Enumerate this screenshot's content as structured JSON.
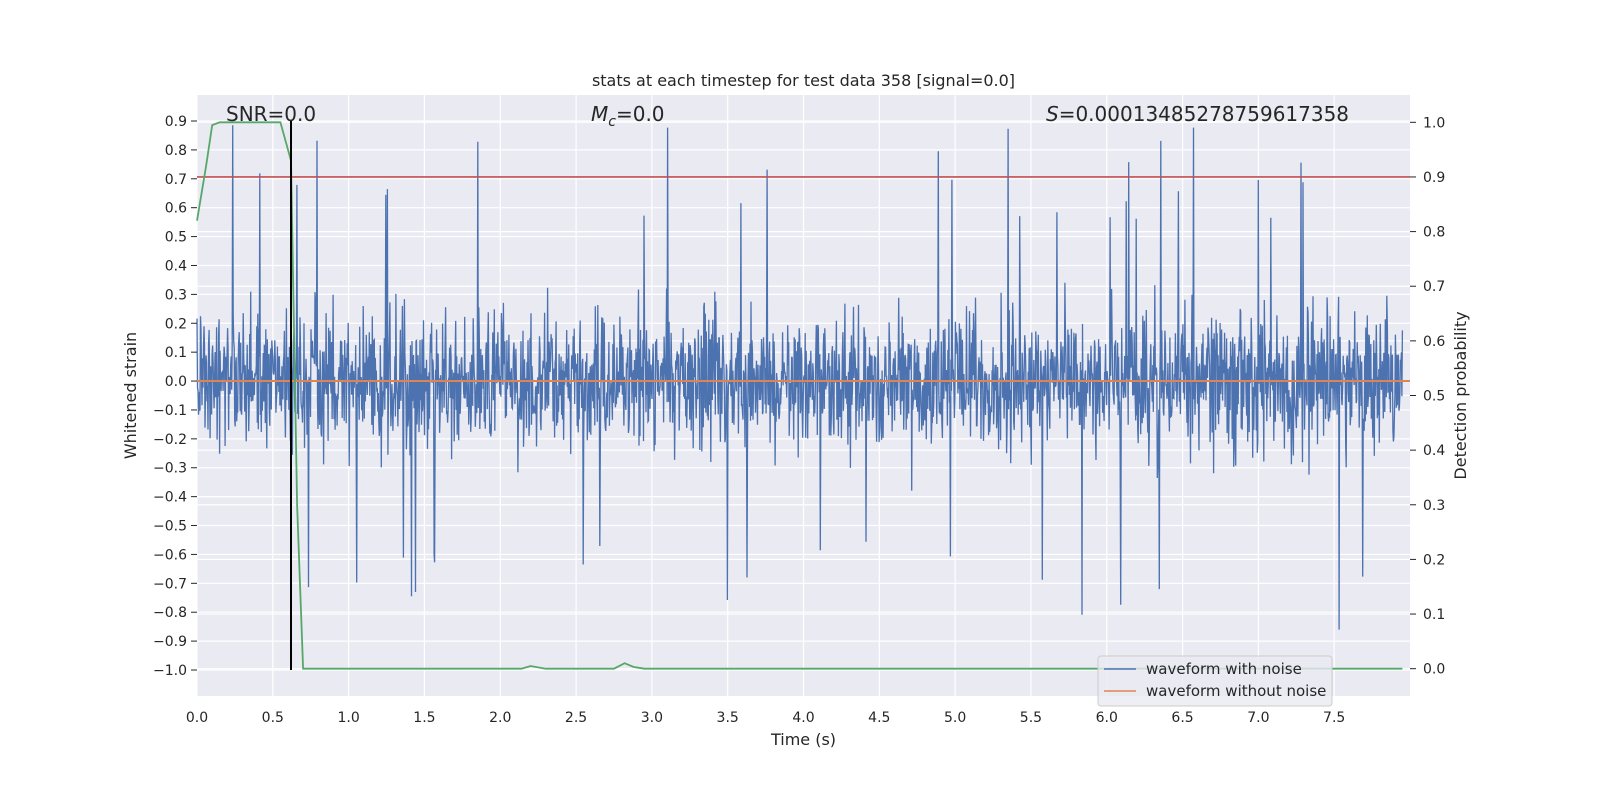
{
  "chart_data": {
    "type": "line",
    "title": "stats at each timestep for test data 358 [signal=0.0]",
    "xlabel": "Time (s)",
    "ylabel": "Whitened strain",
    "y2label": "Detection probability",
    "xlim": [
      0.0,
      8.0
    ],
    "ylim": [
      -1.09,
      0.99
    ],
    "y2lim": [
      -0.05,
      1.05
    ],
    "xticks": [
      0.0,
      0.5,
      1.0,
      1.5,
      2.0,
      2.5,
      3.0,
      3.5,
      4.0,
      4.5,
      5.0,
      5.5,
      6.0,
      6.5,
      7.0,
      7.5
    ],
    "xtick_labels": [
      "0.0",
      "0.5",
      "1.0",
      "1.5",
      "2.0",
      "2.5",
      "3.0",
      "3.5",
      "4.0",
      "4.5",
      "5.0",
      "5.5",
      "6.0",
      "6.5",
      "7.0",
      "7.5"
    ],
    "yticks": [
      0.9,
      0.8,
      0.7,
      0.6,
      0.5,
      0.4,
      0.3,
      0.2,
      0.1,
      0.0,
      -0.1,
      -0.2,
      -0.3,
      -0.4,
      -0.5,
      -0.6,
      -0.7,
      -0.8,
      -0.9,
      -1.0
    ],
    "ytick_labels": [
      "0.9",
      "0.8",
      "0.7",
      "0.6",
      "0.5",
      "0.4",
      "0.3",
      "0.2",
      "0.1",
      "0.0",
      "−0.1",
      "−0.2",
      "−0.3",
      "−0.4",
      "−0.5",
      "−0.6",
      "−0.7",
      "−0.8",
      "−0.9",
      "−1.0"
    ],
    "y2ticks": [
      1.0,
      0.9,
      0.8,
      0.7,
      0.6,
      0.5,
      0.4,
      0.3,
      0.2,
      0.1,
      0.0
    ],
    "y2tick_labels": [
      "1.0",
      "0.9",
      "0.8",
      "0.7",
      "0.6",
      "0.5",
      "0.4",
      "0.3",
      "0.2",
      "0.1",
      "0.0"
    ],
    "annotations": {
      "snr": "SNR=0.0",
      "mc_symbol": "M",
      "mc_sub": "c",
      "mc_value": "=0.0",
      "s_symbol": "S",
      "s_value": "=0.00013485278759617358"
    },
    "series": [
      {
        "name": "waveform with noise",
        "axis": "left",
        "color": "#4c72b0",
        "style": "dense noise, band approx −0.45 to 0.40 with spikes to ~0.90 and ~−1.0"
      },
      {
        "name": "waveform without noise",
        "axis": "left",
        "color": "#dd8452",
        "y_constant": 0.0
      },
      {
        "name": "detection probability",
        "axis": "right",
        "color": "#55a868",
        "x": [
          0.0,
          0.06,
          0.1,
          0.15,
          0.2,
          0.3,
          0.4,
          0.5,
          0.55,
          0.62,
          0.66,
          0.7,
          1.0,
          2.0,
          2.14,
          2.2,
          2.3,
          2.6,
          2.75,
          2.82,
          2.88,
          2.95,
          3.5,
          7.95
        ],
        "values": [
          0.82,
          0.92,
          0.995,
          1.0,
          1.0,
          1.0,
          1.0,
          1.0,
          1.0,
          0.93,
          0.3,
          0.0,
          0.0,
          0.0,
          0.0,
          0.005,
          0.0,
          0.0,
          0.0,
          0.01,
          0.003,
          0.0,
          0.0,
          0.0
        ]
      },
      {
        "name": "threshold",
        "axis": "right",
        "color": "#c44e52",
        "y_constant": 0.9
      },
      {
        "name": "detection time",
        "axis": "left",
        "color": "#000000",
        "x_constant": 0.62,
        "y_range": [
          -1.0,
          0.9
        ]
      }
    ],
    "legend": {
      "placement": "bottom-right",
      "entries": [
        {
          "label": "waveform with noise",
          "color": "#4c72b0"
        },
        {
          "label": "waveform without noise",
          "color": "#dd8452"
        }
      ]
    },
    "grid": true
  }
}
